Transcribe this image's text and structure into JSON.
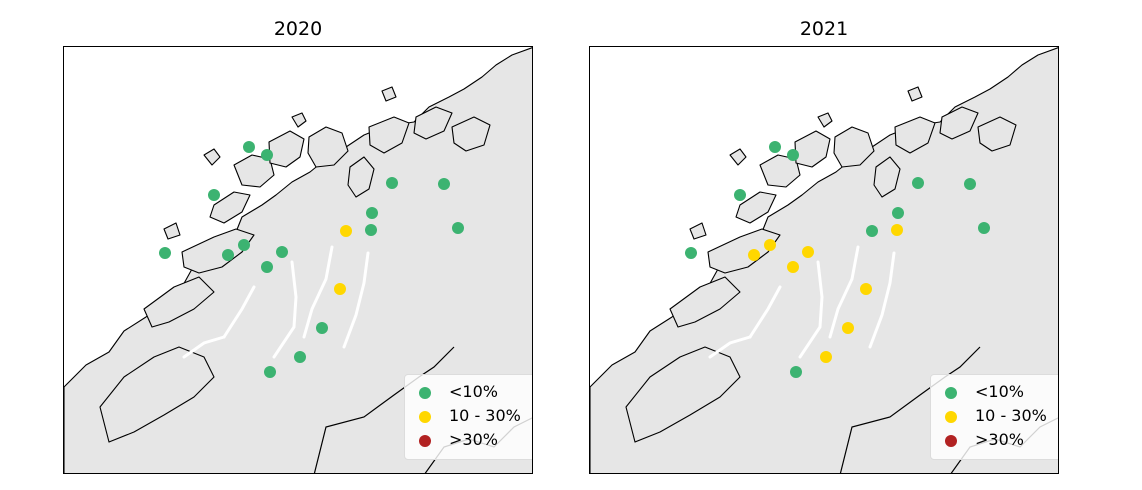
{
  "colors": {
    "low": "#3cb371",
    "mid": "#ffd700",
    "high": "#b22222",
    "land": "#e6e6e6",
    "sea": "#ffffff",
    "coast": "#000000"
  },
  "legend": [
    {
      "label": "<10%",
      "level": "low"
    },
    {
      "label": "10 - 30%",
      "level": "mid"
    },
    {
      "label": ">30%",
      "level": "high"
    }
  ],
  "panels": [
    {
      "title": "2020",
      "stations": [
        "low",
        "low",
        "low",
        "low",
        "low",
        "low",
        "low",
        "low",
        "low",
        "low",
        "mid",
        "low",
        "low",
        "low",
        "mid",
        "low",
        "low",
        "low"
      ]
    },
    {
      "title": "2021",
      "stations": [
        "low",
        "low",
        "low",
        "low",
        "mid",
        "mid",
        "mid",
        "mid",
        "low",
        "mid",
        "low",
        "low",
        "low",
        "low",
        "mid",
        "mid",
        "mid",
        "low"
      ]
    }
  ]
}
